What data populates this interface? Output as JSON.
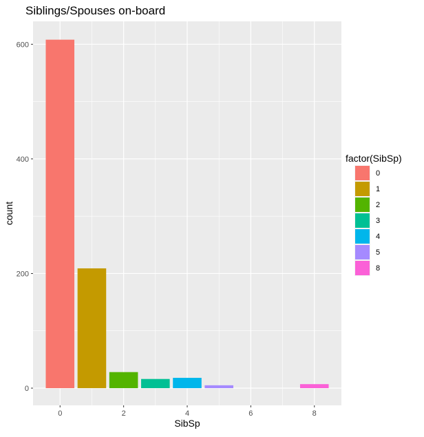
{
  "chart_data": {
    "type": "bar",
    "title": "Siblings/Spouses on-board",
    "xlabel": "SibSp",
    "ylabel": "count",
    "x": [
      0,
      1,
      2,
      3,
      4,
      5,
      8
    ],
    "values": [
      608,
      209,
      28,
      16,
      18,
      5,
      7
    ],
    "xlim": [
      -0.85,
      8.85
    ],
    "ylim": [
      -30,
      640
    ],
    "xticks": [
      0,
      2,
      4,
      6,
      8
    ],
    "yticks": [
      0,
      200,
      400,
      600
    ],
    "legend": {
      "title": "factor(SibSp)",
      "position": "right",
      "entries": [
        "0",
        "1",
        "2",
        "3",
        "4",
        "5",
        "8"
      ]
    },
    "colors": [
      "#F8766D",
      "#C49A00",
      "#53B400",
      "#00C094",
      "#00B6EB",
      "#A58AFF",
      "#FB61D7"
    ],
    "panel_background": "#EBEBEB",
    "grid": true
  }
}
